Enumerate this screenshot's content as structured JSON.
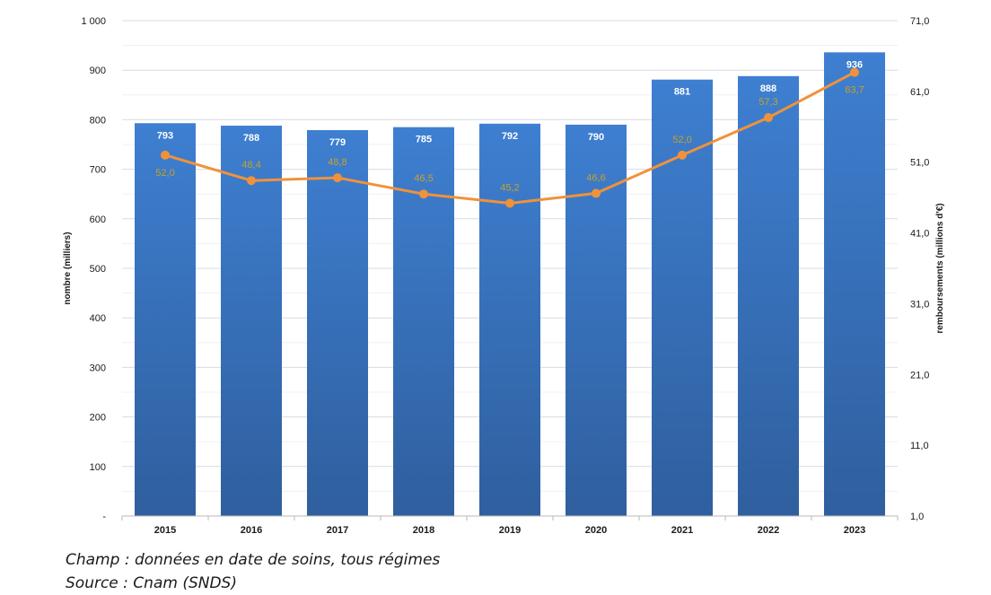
{
  "chart_data": {
    "type": "bar",
    "categories": [
      "2015",
      "2016",
      "2017",
      "2018",
      "2019",
      "2020",
      "2021",
      "2022",
      "2023"
    ],
    "series": [
      {
        "type": "bar",
        "axis": "left",
        "color": "#3a75c4",
        "values": [
          793,
          788,
          779,
          785,
          792,
          790,
          881,
          888,
          936
        ],
        "labels": [
          "793",
          "788",
          "779",
          "785",
          "792",
          "790",
          "881",
          "888",
          "936"
        ]
      },
      {
        "type": "line",
        "axis": "right",
        "color": "#f0923a",
        "values": [
          52.0,
          48.4,
          48.8,
          46.5,
          45.2,
          46.6,
          52.0,
          57.3,
          63.7
        ],
        "labels": [
          "52,0",
          "48,4",
          "48,8",
          "46,5",
          "45,2",
          "46,6",
          "52,0",
          "57,3",
          "63,7"
        ]
      }
    ],
    "ylabel": "nombre (milliers)",
    "y2label": "remboursements (millions d'€)",
    "ylim": [
      0,
      1000
    ],
    "y2lim": [
      1,
      71
    ],
    "yticks": [
      "-",
      "100",
      "200",
      "300",
      "400",
      "500",
      "600",
      "700",
      "800",
      "900",
      "1 000"
    ],
    "y2ticks": [
      "1,0",
      "11,0",
      "21,0",
      "31,0",
      "41,0",
      "51,0",
      "61,0",
      "71,0"
    ],
    "grid": true,
    "legend": "none"
  },
  "notes": {
    "champ": "Champ : données en date de soins, tous régimes",
    "source": "Source : Cnam (SNDS)"
  }
}
